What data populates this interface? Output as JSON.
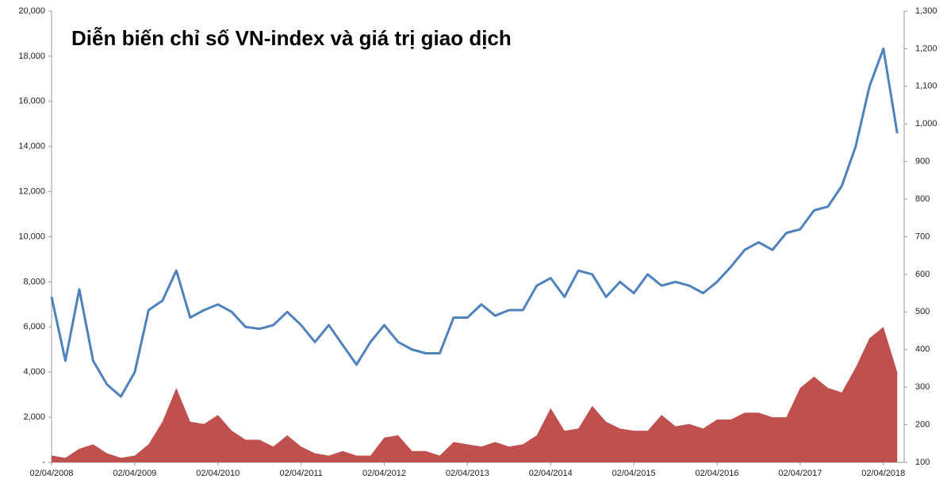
{
  "chart_data": {
    "type": "area-line",
    "title": "Diễn biến chỉ số VN-index và giá trị giao dịch",
    "x": [
      "02/04/2008",
      "02/06/2008",
      "02/08/2008",
      "02/10/2008",
      "02/12/2008",
      "02/02/2009",
      "02/04/2009",
      "02/06/2009",
      "02/08/2009",
      "02/10/2009",
      "02/12/2009",
      "02/02/2010",
      "02/04/2010",
      "02/06/2010",
      "02/08/2010",
      "02/10/2010",
      "02/12/2010",
      "02/02/2011",
      "02/04/2011",
      "02/06/2011",
      "02/08/2011",
      "02/10/2011",
      "02/12/2011",
      "02/02/2012",
      "02/04/2012",
      "02/06/2012",
      "02/08/2012",
      "02/10/2012",
      "02/12/2012",
      "02/02/2013",
      "02/04/2013",
      "02/06/2013",
      "02/08/2013",
      "02/10/2013",
      "02/12/2013",
      "02/02/2014",
      "02/04/2014",
      "02/06/2014",
      "02/08/2014",
      "02/10/2014",
      "02/12/2014",
      "02/02/2015",
      "02/04/2015",
      "02/06/2015",
      "02/08/2015",
      "02/10/2015",
      "02/12/2015",
      "02/02/2016",
      "02/04/2016",
      "02/06/2016",
      "02/08/2016",
      "02/10/2016",
      "02/12/2016",
      "02/02/2017",
      "02/04/2017",
      "02/06/2017",
      "02/08/2017",
      "02/10/2017",
      "02/12/2017",
      "02/02/2018",
      "02/04/2018",
      "02/06/2018"
    ],
    "series": [
      {
        "color": "#c0504d",
        "kind": "area",
        "axis": "y",
        "values": [
          300,
          200,
          600,
          800,
          400,
          200,
          300,
          800,
          1800,
          3300,
          1800,
          1700,
          2100,
          1400,
          1000,
          1000,
          700,
          1200,
          700,
          400,
          300,
          500,
          300,
          300,
          1100,
          1200,
          500,
          500,
          300,
          900,
          800,
          700,
          900,
          700,
          800,
          1200,
          2400,
          1400,
          1500,
          2500,
          1800,
          1500,
          1400,
          1400,
          2100,
          1600,
          1700,
          1500,
          1900,
          1900,
          2200,
          2200,
          2000,
          2000,
          3300,
          3800,
          3300,
          3100,
          4200,
          5500,
          6000,
          4000
        ]
      },
      {
        "color": "#4f81bd",
        "kind": "line",
        "axis": "y2",
        "values": [
          540,
          370,
          560,
          370,
          307,
          275,
          340,
          505,
          530,
          610,
          485,
          505,
          520,
          500,
          460,
          455,
          465,
          500,
          465,
          420,
          465,
          412,
          360,
          420,
          465,
          420,
          400,
          390,
          390,
          485,
          485,
          520,
          490,
          505,
          505,
          570,
          590,
          540,
          610,
          600,
          540,
          580,
          550,
          600,
          570,
          580,
          570,
          550,
          580,
          620,
          665,
          685,
          665,
          710,
          720,
          770,
          780,
          835,
          940,
          1100,
          1200,
          975
        ]
      }
    ],
    "xlim": [
      "02/04/2008",
      "02/07/2018"
    ],
    "xticks": [
      "02/04/2008",
      "02/04/2009",
      "02/04/2010",
      "02/04/2011",
      "02/04/2012",
      "02/04/2013",
      "02/04/2014",
      "02/04/2015",
      "02/04/2016",
      "02/04/2017",
      "02/04/2018"
    ],
    "ylim": [
      0,
      20000
    ],
    "yticks": [
      {
        "value": 0,
        "label": "-"
      },
      {
        "value": 2000,
        "label": "2,000"
      },
      {
        "value": 4000,
        "label": "4,000"
      },
      {
        "value": 6000,
        "label": "6,000"
      },
      {
        "value": 8000,
        "label": "8,000"
      },
      {
        "value": 10000,
        "label": "10,000"
      },
      {
        "value": 12000,
        "label": "12,000"
      },
      {
        "value": 14000,
        "label": "14,000"
      },
      {
        "value": 16000,
        "label": "16,000"
      },
      {
        "value": 18000,
        "label": "18,000"
      },
      {
        "value": 20000,
        "label": "20,000"
      }
    ],
    "y2lim": [
      100,
      1300
    ],
    "y2ticks": [
      100,
      {
        "value": 200,
        "label": "200"
      },
      {
        "value": 300,
        "label": "300"
      },
      {
        "value": 400,
        "label": "400"
      },
      {
        "value": 500,
        "label": "500"
      },
      {
        "value": 600,
        "label": "600"
      },
      {
        "value": 700,
        "label": "700"
      },
      {
        "value": 800,
        "label": "800"
      },
      {
        "value": 900,
        "label": "900"
      },
      {
        "value": 1000,
        "label": "1,000"
      },
      {
        "value": 1100,
        "label": "1,100"
      },
      {
        "value": 1200,
        "label": "1,200"
      },
      {
        "value": 1300,
        "label": "1,300"
      }
    ]
  }
}
